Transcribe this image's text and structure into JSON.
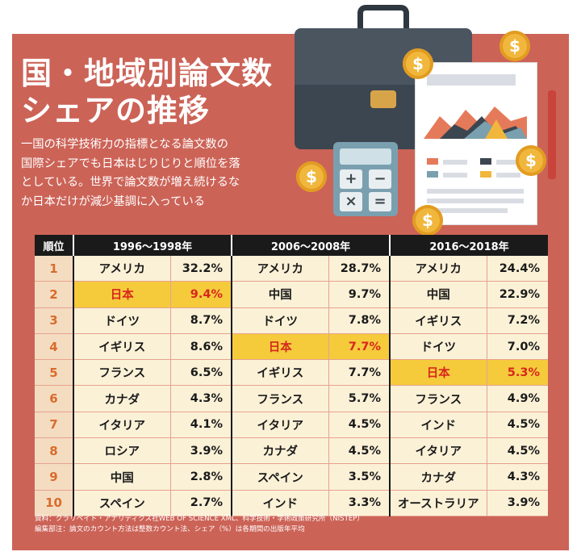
{
  "title": {
    "line1": "国・地域別論文数",
    "line2": "シェアの推移"
  },
  "description": [
    "一国の科学技術力の指標となる論文数の",
    "国際シェアでも日本はじりじりと順位を落",
    "としている。世界で論文数が増え続けるな",
    "か日本だけが減少基調に入っている"
  ],
  "illustration": {
    "coin_symbol": "$"
  },
  "table": {
    "rank_header": "順位",
    "period_headers": [
      "1996～1998年",
      "2006～2008年",
      "2016～2018年"
    ],
    "rows": [
      {
        "rank": "1",
        "p1": [
          "アメリカ",
          "32.2%"
        ],
        "p2": [
          "アメリカ",
          "28.7%"
        ],
        "p3": [
          "アメリカ",
          "24.4%"
        ]
      },
      {
        "rank": "2",
        "p1": [
          "日本",
          "9.4%"
        ],
        "p2": [
          "中国",
          "9.7%"
        ],
        "p3": [
          "中国",
          "22.9%"
        ]
      },
      {
        "rank": "3",
        "p1": [
          "ドイツ",
          "8.7%"
        ],
        "p2": [
          "ドイツ",
          "7.8%"
        ],
        "p3": [
          "イギリス",
          "7.2%"
        ]
      },
      {
        "rank": "4",
        "p1": [
          "イギリス",
          "8.6%"
        ],
        "p2": [
          "日本",
          "7.7%"
        ],
        "p3": [
          "ドイツ",
          "7.0%"
        ]
      },
      {
        "rank": "5",
        "p1": [
          "フランス",
          "6.5%"
        ],
        "p2": [
          "イギリス",
          "7.7%"
        ],
        "p3": [
          "日本",
          "5.3%"
        ]
      },
      {
        "rank": "6",
        "p1": [
          "カナダ",
          "4.3%"
        ],
        "p2": [
          "フランス",
          "5.7%"
        ],
        "p3": [
          "フランス",
          "4.9%"
        ]
      },
      {
        "rank": "7",
        "p1": [
          "イタリア",
          "4.1%"
        ],
        "p2": [
          "イタリア",
          "4.5%"
        ],
        "p3": [
          "インド",
          "4.5%"
        ]
      },
      {
        "rank": "8",
        "p1": [
          "ロシア",
          "3.9%"
        ],
        "p2": [
          "カナダ",
          "4.5%"
        ],
        "p3": [
          "イタリア",
          "4.5%"
        ]
      },
      {
        "rank": "9",
        "p1": [
          "中国",
          "2.8%"
        ],
        "p2": [
          "スペイン",
          "3.5%"
        ],
        "p3": [
          "カナダ",
          "4.3%"
        ]
      },
      {
        "rank": "10",
        "p1": [
          "スペイン",
          "2.7%"
        ],
        "p2": [
          "インド",
          "3.3%"
        ],
        "p3": [
          "オーストラリア",
          "3.9%"
        ]
      }
    ],
    "highlight_country": "日本",
    "highlight_color": "#f5cb3c",
    "highlight_text_color": "#d8261d"
  },
  "source": {
    "line1": "資料：クラリベイト・アナリティクス社WEB OF SCIENCE XML、科学技術・学術政策研究所（NISTEP）",
    "line2": "編集部注：論文のカウント方法は整数カウント法、シェア（%）は各期間の出版年平均"
  },
  "colors": {
    "panel": "#cc6357",
    "table_bg": "#fbf1d7",
    "header_bg": "#1a1a1a",
    "rank_col": "#f4dcc1"
  }
}
